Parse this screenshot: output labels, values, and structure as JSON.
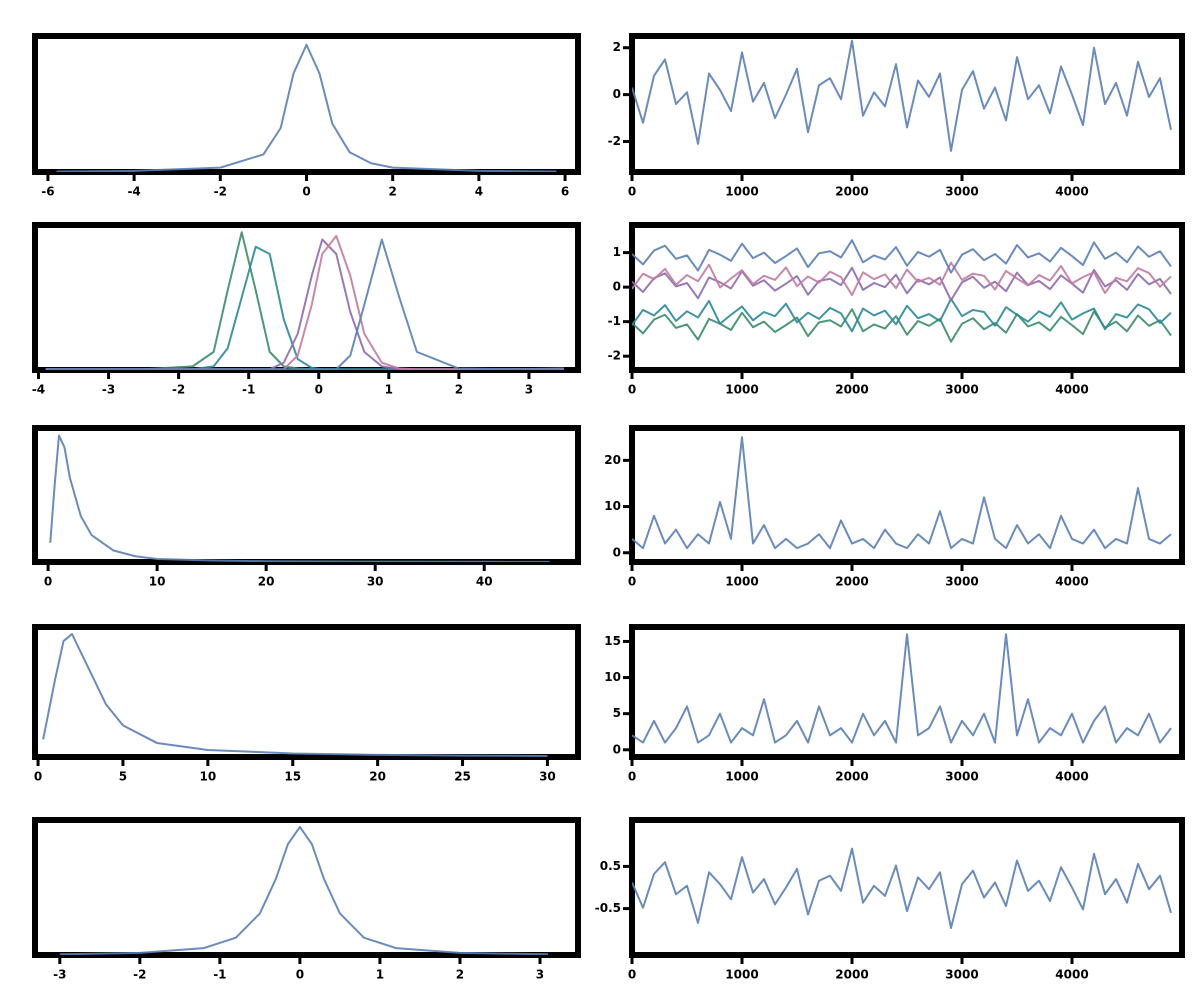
{
  "chart_data": [
    {
      "type": "line",
      "color": "#5a7fb5",
      "xlim": [
        -6.3,
        6.3
      ],
      "ylim": [
        0,
        0.62
      ],
      "xticks": [
        -6,
        -4,
        -2,
        0,
        2,
        4,
        6
      ],
      "x": [
        -5.8,
        -4,
        -2,
        -1,
        -0.6,
        -0.3,
        0,
        0.3,
        0.6,
        1,
        1.5,
        2,
        4,
        5.8
      ],
      "values": [
        0.002,
        0.005,
        0.02,
        0.08,
        0.2,
        0.45,
        0.58,
        0.45,
        0.22,
        0.09,
        0.04,
        0.02,
        0.005,
        0.002
      ]
    },
    {
      "type": "line",
      "color": "#5a7fb5",
      "xlim": [
        0,
        5000
      ],
      "ylim": [
        -3.3,
        2.5
      ],
      "xticks": [
        0,
        1000,
        2000,
        3000,
        4000
      ],
      "yticks": [
        -2,
        0,
        2
      ],
      "x": [
        0,
        100,
        200,
        300,
        400,
        500,
        600,
        700,
        800,
        900,
        1000,
        1100,
        1200,
        1300,
        1400,
        1500,
        1600,
        1700,
        1800,
        1900,
        2000,
        2100,
        2200,
        2300,
        2400,
        2500,
        2600,
        2700,
        2800,
        2900,
        3000,
        3100,
        3200,
        3300,
        3400,
        3500,
        3600,
        3700,
        3800,
        3900,
        4000,
        4100,
        4200,
        4300,
        4400,
        4500,
        4600,
        4700,
        4800,
        4900
      ],
      "values": [
        0.3,
        -1.2,
        0.8,
        1.5,
        -0.4,
        0.1,
        -2.1,
        0.9,
        0.2,
        -0.7,
        1.8,
        -0.3,
        0.5,
        -1.0,
        0.0,
        1.1,
        -1.6,
        0.4,
        0.7,
        -0.2,
        2.3,
        -0.9,
        0.1,
        -0.5,
        1.3,
        -1.4,
        0.6,
        -0.1,
        0.9,
        -2.4,
        0.2,
        1.0,
        -0.6,
        0.3,
        -1.1,
        1.6,
        -0.2,
        0.4,
        -0.8,
        1.2,
        0.0,
        -1.3,
        2.0,
        -0.4,
        0.5,
        -0.9,
        1.4,
        -0.1,
        0.7,
        -1.5
      ]
    },
    {
      "type": "line",
      "xlim": [
        -4.05,
        3.7
      ],
      "ylim": [
        0,
        2
      ],
      "xticks": [
        -4,
        -3,
        -2,
        -1,
        0,
        1,
        2,
        3
      ],
      "x": [
        -3.9,
        -2.5,
        -1.8,
        -1.5,
        -1.3,
        -1.1,
        -0.9,
        -0.7,
        -0.5,
        -0.3,
        -0.1,
        0.05,
        0.25,
        0.45,
        0.65,
        0.9,
        1.15,
        1.4,
        2,
        2.8,
        3.5
      ],
      "series": [
        {
          "color": "#3b8c6a",
          "values": [
            0.01,
            0.01,
            0.05,
            0.25,
            1.1,
            1.9,
            1.1,
            0.25,
            0.05,
            0.02,
            0.01,
            0.01,
            0.01,
            0.01,
            0.01,
            0.01,
            0.01,
            0.01,
            0.01,
            0.01,
            0.01
          ]
        },
        {
          "color": "#2a8a99",
          "values": [
            0.01,
            0.01,
            0.01,
            0.05,
            0.3,
            1.0,
            1.7,
            1.6,
            0.7,
            0.15,
            0.03,
            0.01,
            0.01,
            0.01,
            0.01,
            0.01,
            0.01,
            0.01,
            0.01,
            0.01,
            0.01
          ]
        },
        {
          "color": "#8c6bb1",
          "values": [
            0.01,
            0.01,
            0.01,
            0.01,
            0.01,
            0.01,
            0.01,
            0.01,
            0.1,
            0.5,
            1.3,
            1.8,
            1.6,
            0.8,
            0.25,
            0.05,
            0.01,
            0.01,
            0.01,
            0.01,
            0.01
          ]
        },
        {
          "color": "#c27ba0",
          "values": [
            0.01,
            0.01,
            0.01,
            0.01,
            0.01,
            0.01,
            0.01,
            0.01,
            0.01,
            0.2,
            0.9,
            1.6,
            1.85,
            1.3,
            0.5,
            0.1,
            0.02,
            0.01,
            0.01,
            0.01,
            0.02
          ]
        },
        {
          "color": "#5a7fb5",
          "values": [
            0.01,
            0.01,
            0.01,
            0.01,
            0.01,
            0.01,
            0.01,
            0.01,
            0.01,
            0.01,
            0.01,
            0.01,
            0.01,
            0.2,
            0.9,
            1.8,
            1.0,
            0.25,
            0.02,
            0.01,
            0.01
          ]
        }
      ]
    },
    {
      "type": "line",
      "xlim": [
        0,
        5000
      ],
      "ylim": [
        -2.4,
        1.8
      ],
      "xticks": [
        0,
        1000,
        2000,
        3000,
        4000
      ],
      "yticks": [
        -2,
        -1,
        0,
        1
      ],
      "x": [
        0,
        100,
        200,
        300,
        400,
        500,
        600,
        700,
        800,
        900,
        1000,
        1100,
        1200,
        1300,
        1400,
        1500,
        1600,
        1700,
        1800,
        1900,
        2000,
        2100,
        2200,
        2300,
        2400,
        2500,
        2600,
        2700,
        2800,
        2900,
        3000,
        3100,
        3200,
        3300,
        3400,
        3500,
        3600,
        3700,
        3800,
        3900,
        4000,
        4100,
        4200,
        4300,
        4400,
        4500,
        4600,
        4700,
        4800,
        4900
      ],
      "series": [
        {
          "color": "#3b8c6a",
          "values": [
            -1.04,
            -1.34,
            -0.94,
            -0.8,
            -1.18,
            -1.08,
            -1.52,
            -0.92,
            -1.06,
            -1.24,
            -0.74,
            -1.16,
            -1.0,
            -1.3,
            -1.1,
            -0.88,
            -1.42,
            -1.02,
            -0.96,
            -1.14,
            -0.64,
            -1.28,
            -1.08,
            -1.2,
            -0.84,
            -1.38,
            -0.98,
            -1.12,
            -0.92,
            -1.58,
            -1.06,
            -0.9,
            -1.22,
            -1.04,
            -1.32,
            -0.78,
            -1.14,
            -1.02,
            -1.26,
            -0.86,
            -1.1,
            -1.36,
            -0.7,
            -1.18,
            -1.0,
            -1.28,
            -0.82,
            -1.12,
            -0.96,
            -1.4
          ]
        },
        {
          "color": "#2a8a99",
          "values": [
            -1.1,
            -0.66,
            -0.82,
            -0.52,
            -0.98,
            -0.7,
            -0.88,
            -0.4,
            -1.06,
            -0.8,
            -0.56,
            -0.96,
            -0.72,
            -0.84,
            -0.48,
            -1.02,
            -0.74,
            -0.92,
            -0.6,
            -0.76,
            -1.28,
            -0.62,
            -0.82,
            -0.68,
            -1.08,
            -0.54,
            -0.9,
            -0.78,
            -0.98,
            -0.34,
            -0.84,
            -0.66,
            -0.72,
            -1.12,
            -0.58,
            -0.8,
            -1.0,
            -0.7,
            -0.86,
            -0.44,
            -0.94,
            -0.76,
            -0.62,
            -1.22,
            -0.78,
            -0.88,
            -0.5,
            -0.64,
            -1.04,
            -0.74
          ]
        },
        {
          "color": "#8c6bb1",
          "values": [
            0.16,
            -0.14,
            0.26,
            0.4,
            0.02,
            0.12,
            -0.32,
            0.28,
            0.14,
            -0.04,
            0.46,
            0.04,
            0.2,
            -0.1,
            0.1,
            0.32,
            -0.22,
            0.18,
            0.24,
            0.06,
            0.56,
            -0.08,
            0.12,
            0,
            0.36,
            -0.18,
            0.22,
            0.08,
            0.28,
            -0.38,
            0.14,
            0.3,
            -0.02,
            0.16,
            -0.12,
            0.42,
            0.06,
            0.18,
            -0.06,
            0.34,
            0.1,
            -0.16,
            0.5,
            0.02,
            0.2,
            -0.08,
            0.38,
            0.08,
            0.24,
            -0.2
          ]
        },
        {
          "color": "#c27ba0",
          "values": [
            -0.05,
            0.39,
            0.23,
            0.53,
            0.07,
            0.35,
            0.17,
            0.65,
            -0.01,
            0.25,
            0.49,
            0.09,
            0.33,
            0.21,
            0.57,
            0.03,
            0.31,
            0.13,
            0.45,
            0.29,
            -0.23,
            0.43,
            0.23,
            0.37,
            -0.03,
            0.51,
            0.15,
            0.27,
            0.07,
            0.71,
            0.21,
            0.39,
            0.33,
            -0.07,
            0.47,
            0.25,
            0.05,
            0.35,
            0.19,
            0.61,
            0.11,
            0.29,
            0.43,
            -0.17,
            0.27,
            0.17,
            0.55,
            0.41,
            0.01,
            0.31
          ]
        },
        {
          "color": "#5a7fb5",
          "values": [
            0.96,
            0.66,
            1.06,
            1.2,
            0.82,
            0.92,
            0.48,
            1.08,
            0.94,
            0.76,
            1.26,
            0.84,
            1.0,
            0.7,
            0.9,
            1.12,
            0.58,
            0.98,
            1.04,
            0.86,
            1.36,
            0.72,
            0.92,
            0.8,
            1.16,
            0.62,
            1.02,
            0.88,
            1.08,
            0.42,
            0.94,
            1.1,
            0.78,
            0.96,
            0.68,
            1.22,
            0.86,
            0.98,
            0.74,
            1.14,
            0.9,
            0.64,
            1.3,
            0.82,
            1.0,
            0.72,
            1.18,
            0.88,
            1.04,
            0.6
          ]
        }
      ]
    },
    {
      "type": "line",
      "color": "#5a7fb5",
      "xlim": [
        -1.2,
        48.6
      ],
      "ylim": [
        0,
        0.35
      ],
      "xticks": [
        0,
        10,
        20,
        30,
        40
      ],
      "x": [
        0.2,
        0.6,
        1,
        1.5,
        2,
        3,
        4,
        6,
        8,
        10,
        15,
        20,
        30,
        40,
        46
      ],
      "values": [
        0.05,
        0.2,
        0.33,
        0.3,
        0.22,
        0.12,
        0.07,
        0.03,
        0.015,
        0.008,
        0.004,
        0.002,
        0.001,
        0.0005,
        0.0002
      ]
    },
    {
      "type": "line",
      "color": "#5a7fb5",
      "xlim": [
        0,
        5000
      ],
      "ylim": [
        -2,
        27
      ],
      "xticks": [
        0,
        1000,
        2000,
        3000,
        4000
      ],
      "yticks": [
        0,
        10,
        20
      ],
      "x": [
        0,
        100,
        200,
        300,
        400,
        500,
        600,
        700,
        800,
        900,
        1000,
        1100,
        1200,
        1300,
        1400,
        1500,
        1600,
        1700,
        1800,
        1900,
        2000,
        2100,
        2200,
        2300,
        2400,
        2500,
        2600,
        2700,
        2800,
        2900,
        3000,
        3100,
        3200,
        3300,
        3400,
        3500,
        3600,
        3700,
        3800,
        3900,
        4000,
        4100,
        4200,
        4300,
        4400,
        4500,
        4600,
        4700,
        4800,
        4900
      ],
      "values": [
        3,
        1,
        8,
        2,
        5,
        1,
        4,
        2,
        11,
        3,
        25,
        2,
        6,
        1,
        3,
        1,
        2,
        4,
        1,
        7,
        2,
        3,
        1,
        5,
        2,
        1,
        4,
        2,
        9,
        1,
        3,
        2,
        12,
        3,
        1,
        6,
        2,
        4,
        1,
        8,
        3,
        2,
        5,
        1,
        3,
        2,
        14,
        3,
        2,
        4
      ]
    },
    {
      "type": "line",
      "color": "#5a7fb5",
      "xlim": [
        -0.18,
        31.8
      ],
      "ylim": [
        0,
        0.37
      ],
      "xticks": [
        0,
        5,
        10,
        15,
        20,
        25,
        30
      ],
      "x": [
        0.3,
        1,
        1.5,
        2,
        3,
        4,
        5,
        7,
        10,
        15,
        20,
        25,
        30
      ],
      "values": [
        0.05,
        0.22,
        0.33,
        0.35,
        0.25,
        0.15,
        0.09,
        0.04,
        0.02,
        0.01,
        0.006,
        0.004,
        0.003
      ]
    },
    {
      "type": "line",
      "color": "#5a7fb5",
      "xlim": [
        0,
        5000
      ],
      "ylim": [
        -1,
        17
      ],
      "xticks": [
        0,
        1000,
        2000,
        3000,
        4000
      ],
      "yticks": [
        0,
        5,
        10,
        15
      ],
      "x": [
        0,
        100,
        200,
        300,
        400,
        500,
        600,
        700,
        800,
        900,
        1000,
        1100,
        1200,
        1300,
        1400,
        1500,
        1600,
        1700,
        1800,
        1900,
        2000,
        2100,
        2200,
        2300,
        2400,
        2500,
        2600,
        2700,
        2800,
        2900,
        3000,
        3100,
        3200,
        3300,
        3400,
        3500,
        3600,
        3700,
        3800,
        3900,
        4000,
        4100,
        4200,
        4300,
        4400,
        4500,
        4600,
        4700,
        4800,
        4900
      ],
      "values": [
        2,
        1,
        4,
        1,
        3,
        6,
        1,
        2,
        5,
        1,
        3,
        2,
        7,
        1,
        2,
        4,
        1,
        6,
        2,
        3,
        1,
        5,
        2,
        4,
        1,
        16,
        2,
        3,
        6,
        1,
        4,
        2,
        5,
        1,
        16,
        2,
        7,
        1,
        3,
        2,
        5,
        1,
        4,
        6,
        1,
        3,
        2,
        5,
        1,
        3
      ]
    },
    {
      "type": "line",
      "color": "#5a7fb5",
      "xlim": [
        -3.31,
        3.475
      ],
      "ylim": [
        0,
        1.95
      ],
      "xticks": [
        -3,
        -2,
        -1,
        0,
        1,
        2,
        3
      ],
      "x": [
        -3,
        -2,
        -1.2,
        -0.8,
        -0.5,
        -0.3,
        -0.15,
        0,
        0.15,
        0.3,
        0.5,
        0.8,
        1.2,
        2,
        3.1
      ],
      "values": [
        0.01,
        0.03,
        0.1,
        0.25,
        0.6,
        1.1,
        1.6,
        1.85,
        1.6,
        1.1,
        0.6,
        0.25,
        0.1,
        0.03,
        0.01
      ]
    },
    {
      "type": "line",
      "color": "#5a7fb5",
      "xlim": [
        0,
        5000
      ],
      "ylim": [
        -1.6,
        1.6
      ],
      "xticks": [
        0,
        1000,
        2000,
        3000,
        4000
      ],
      "yticks": [
        -0.5,
        0.5
      ],
      "x": [
        0,
        100,
        200,
        300,
        400,
        500,
        600,
        700,
        800,
        900,
        1000,
        1100,
        1200,
        1300,
        1400,
        1500,
        1600,
        1700,
        1800,
        1900,
        2000,
        2100,
        2200,
        2300,
        2400,
        2500,
        2600,
        2700,
        2800,
        2900,
        3000,
        3100,
        3200,
        3300,
        3400,
        3500,
        3600,
        3700,
        3800,
        3900,
        4000,
        4100,
        4200,
        4300,
        4400,
        4500,
        4600,
        4700,
        4800,
        4900
      ],
      "values": [
        0.12,
        -0.48,
        0.32,
        0.6,
        -0.16,
        0.04,
        -0.84,
        0.36,
        0.08,
        -0.28,
        0.72,
        -0.12,
        0.2,
        -0.4,
        0,
        0.44,
        -0.64,
        0.16,
        0.28,
        -0.08,
        0.92,
        -0.36,
        0.04,
        -0.2,
        0.52,
        -0.56,
        0.24,
        -0.04,
        0.36,
        -0.96,
        0.08,
        0.4,
        -0.24,
        0.12,
        -0.44,
        0.64,
        -0.08,
        0.16,
        -0.32,
        0.48,
        0,
        -0.52,
        0.8,
        -0.16,
        0.2,
        -0.36,
        0.56,
        -0.04,
        0.28,
        -0.6
      ]
    }
  ]
}
